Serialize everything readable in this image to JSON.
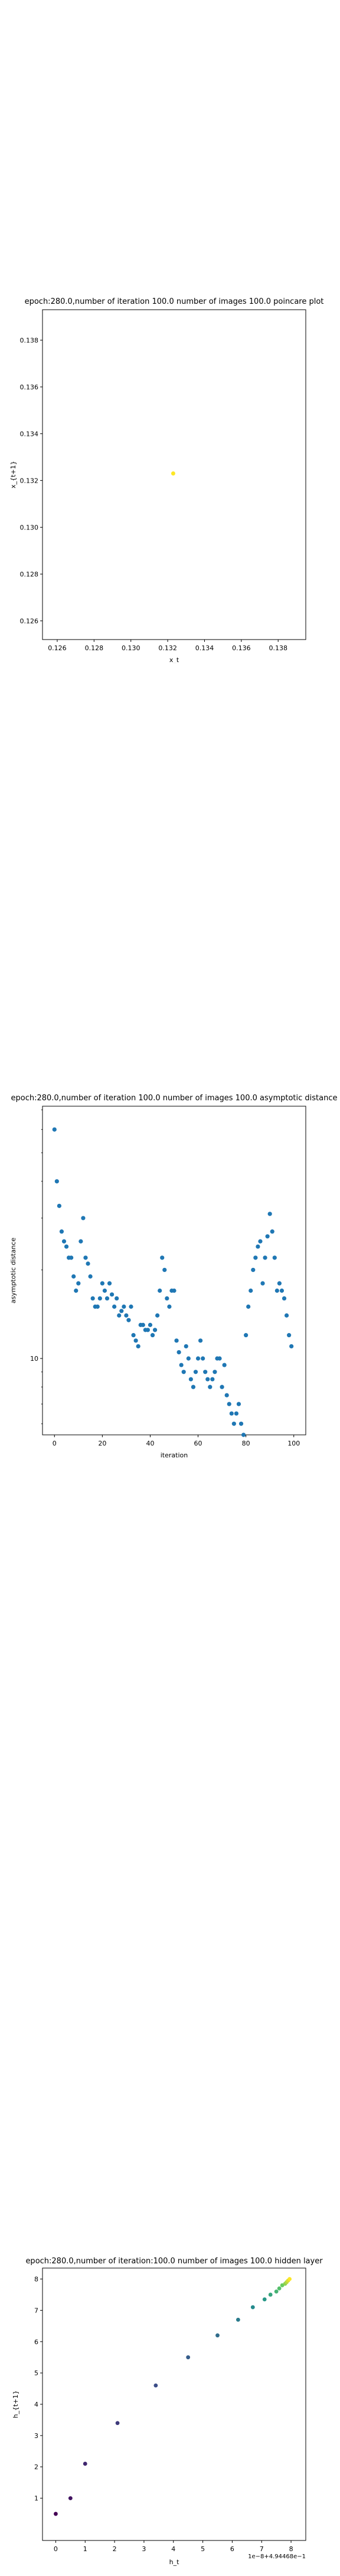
{
  "chart_data": [
    {
      "type": "scatter",
      "title": "epoch:280.0,number of iteration 100.0 number of images 100.0 poincare plot",
      "xlabel": "x_t",
      "ylabel": "x_{t+1}",
      "xlim": [
        0.1252,
        0.1395
      ],
      "ylim": [
        0.1252,
        0.1393
      ],
      "xticks": [
        "0.126",
        "0.128",
        "0.130",
        "0.132",
        "0.134",
        "0.136",
        "0.138"
      ],
      "yticks": [
        "0.126",
        "0.128",
        "0.130",
        "0.132",
        "0.134",
        "0.136",
        "0.138"
      ],
      "points": [
        {
          "x": 0.1323,
          "y": 0.1323
        }
      ],
      "point_color": "#fde725",
      "grid": false
    },
    {
      "type": "scatter",
      "title": "epoch:280.0,number of iteration 100.0  number of images 100.0 asymptotic distance",
      "xlabel": "iteration",
      "ylabel": "asymptotic distance",
      "xlim": [
        -5,
        105
      ],
      "yscale": "log",
      "ylim": [
        0.055,
        0.72
      ],
      "xticks": [
        "0",
        "20",
        "40",
        "60",
        "80",
        "100"
      ],
      "yticks": [
        "10^{-1}"
      ],
      "point_color": "#1f77b4",
      "grid": false,
      "x": [
        0,
        1,
        2,
        3,
        4,
        5,
        6,
        7,
        8,
        9,
        10,
        11,
        12,
        13,
        14,
        15,
        16,
        17,
        18,
        19,
        20,
        21,
        22,
        23,
        24,
        25,
        26,
        27,
        28,
        29,
        30,
        31,
        32,
        33,
        34,
        35,
        36,
        37,
        38,
        39,
        40,
        41,
        42,
        43,
        44,
        45,
        46,
        47,
        48,
        49,
        50,
        51,
        52,
        53,
        54,
        55,
        56,
        57,
        58,
        59,
        60,
        61,
        62,
        63,
        64,
        65,
        66,
        67,
        68,
        69,
        70,
        71,
        72,
        73,
        74,
        75,
        76,
        77,
        78,
        79,
        80,
        81,
        82,
        83,
        84,
        85,
        86,
        87,
        88,
        89,
        90,
        91,
        92,
        93,
        94,
        95,
        96,
        97,
        98,
        99
      ],
      "y": [
        0.6,
        0.4,
        0.33,
        0.27,
        0.25,
        0.24,
        0.22,
        0.22,
        0.19,
        0.17,
        0.18,
        0.25,
        0.3,
        0.22,
        0.21,
        0.19,
        0.16,
        0.15,
        0.15,
        0.16,
        0.18,
        0.17,
        0.16,
        0.18,
        0.165,
        0.15,
        0.16,
        0.14,
        0.145,
        0.15,
        0.14,
        0.135,
        0.15,
        0.12,
        0.115,
        0.11,
        0.13,
        0.13,
        0.125,
        0.125,
        0.13,
        0.12,
        0.125,
        0.14,
        0.17,
        0.22,
        0.2,
        0.16,
        0.15,
        0.17,
        0.17,
        0.115,
        0.105,
        0.095,
        0.09,
        0.11,
        0.1,
        0.085,
        0.08,
        0.09,
        0.1,
        0.115,
        0.1,
        0.09,
        0.085,
        0.08,
        0.085,
        0.09,
        0.1,
        0.1,
        0.08,
        0.095,
        0.075,
        0.07,
        0.065,
        0.06,
        0.065,
        0.07,
        0.06,
        0.055,
        0.12,
        0.15,
        0.17,
        0.2,
        0.22,
        0.24,
        0.25,
        0.18,
        0.22,
        0.26,
        0.31,
        0.27,
        0.22,
        0.17,
        0.18,
        0.17,
        0.16,
        0.14,
        0.12,
        0.11
      ]
    },
    {
      "type": "scatter",
      "title": "epoch:280.0,number of iteration:100.0  number of images 100.0 hidden layer",
      "xlabel": "h_t",
      "ylabel": "h_{t+1}",
      "offset_text": "1e−8+4.94468e−1",
      "xlim": [
        -0.45,
        8.5
      ],
      "ylim": [
        -0.35,
        8.35
      ],
      "xticks": [
        "0",
        "1",
        "2",
        "3",
        "4",
        "5",
        "6",
        "7",
        "8"
      ],
      "yticks": [
        "1",
        "2",
        "3",
        "4",
        "5",
        "6",
        "7",
        "8"
      ],
      "colormap": "viridis",
      "grid": false,
      "x": [
        0,
        0.5,
        1.0,
        2.1,
        3.4,
        4.5,
        5.5,
        6.2,
        6.7,
        7.1,
        7.3,
        7.5,
        7.6,
        7.7,
        7.8,
        7.85,
        7.9,
        7.95
      ],
      "y": [
        0.5,
        1.0,
        2.1,
        3.4,
        4.6,
        5.5,
        6.2,
        6.7,
        7.1,
        7.35,
        7.5,
        7.6,
        7.7,
        7.8,
        7.85,
        7.9,
        7.95,
        8.0
      ]
    }
  ]
}
